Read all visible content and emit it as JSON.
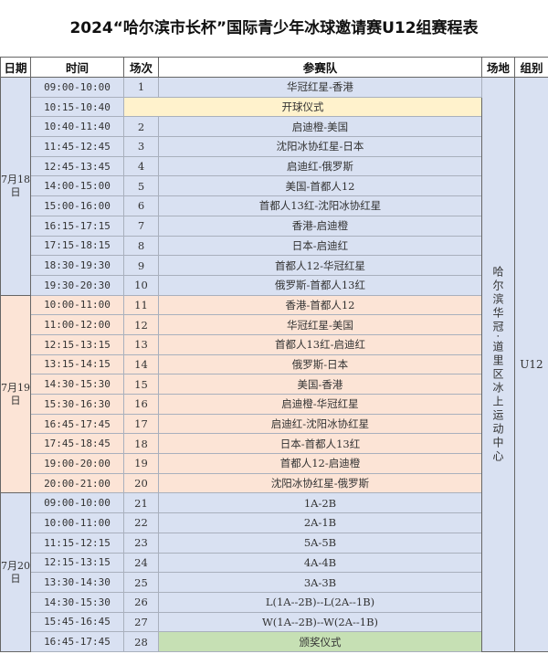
{
  "title": "2024“哈尔滨市长杯”国际青少年冰球邀请赛U12组赛程表",
  "headers": {
    "date": "日期",
    "time": "时间",
    "match": "场次",
    "teams": "参赛队",
    "venue": "场地",
    "group": "组别"
  },
  "venue": "哈尔滨华冠·道里区冰上运动中心",
  "group": "U12",
  "colors": {
    "day1": "#d9e1f2",
    "day2": "#fce4d6",
    "day3": "#d9e1f2",
    "ceremony": "#fff2cc",
    "award": "#c6e0b4"
  },
  "days": [
    {
      "date": "7月18日",
      "rows": [
        {
          "time": "09:00-10:00",
          "no": "1",
          "teams": "华冠红星-香港"
        },
        {
          "time": "10:15-10:40",
          "no": "",
          "teams": "开球仪式",
          "type": "ceremony"
        },
        {
          "time": "10:40-11:40",
          "no": "2",
          "teams": "启迪橙-美国"
        },
        {
          "time": "11:45-12:45",
          "no": "3",
          "teams": "沈阳冰协红星-日本"
        },
        {
          "time": "12:45-13:45",
          "no": "4",
          "teams": "启迪红-俄罗斯"
        },
        {
          "time": "14:00-15:00",
          "no": "5",
          "teams": "美国-首都人12"
        },
        {
          "time": "15:00-16:00",
          "no": "6",
          "teams": "首都人13红-沈阳冰协红星"
        },
        {
          "time": "16:15-17:15",
          "no": "7",
          "teams": "香港-启迪橙"
        },
        {
          "time": "17:15-18:15",
          "no": "8",
          "teams": "日本-启迪红"
        },
        {
          "time": "18:30-19:30",
          "no": "9",
          "teams": "首都人12-华冠红星"
        },
        {
          "time": "19:30-20:30",
          "no": "10",
          "teams": "俄罗斯-首都人13红"
        }
      ]
    },
    {
      "date": "7月19日",
      "rows": [
        {
          "time": "10:00-11:00",
          "no": "11",
          "teams": "香港-首都人12"
        },
        {
          "time": "11:00-12:00",
          "no": "12",
          "teams": "华冠红星-美国"
        },
        {
          "time": "12:15-13:15",
          "no": "13",
          "teams": "首都人13红-启迪红"
        },
        {
          "time": "13:15-14:15",
          "no": "14",
          "teams": "俄罗斯-日本"
        },
        {
          "time": "14:30-15:30",
          "no": "15",
          "teams": "美国-香港"
        },
        {
          "time": "15:30-16:30",
          "no": "16",
          "teams": "启迪橙-华冠红星"
        },
        {
          "time": "16:45-17:45",
          "no": "17",
          "teams": "启迪红-沈阳冰协红星"
        },
        {
          "time": "17:45-18:45",
          "no": "18",
          "teams": "日本-首都人13红"
        },
        {
          "time": "19:00-20:00",
          "no": "19",
          "teams": "首都人12-启迪橙"
        },
        {
          "time": "20:00-21:00",
          "no": "20",
          "teams": "沈阳冰协红星-俄罗斯"
        }
      ]
    },
    {
      "date": "7月20日",
      "rows": [
        {
          "time": "09:00-10:00",
          "no": "21",
          "teams": "1A-2B"
        },
        {
          "time": "10:00-11:00",
          "no": "22",
          "teams": "2A-1B"
        },
        {
          "time": "11:15-12:15",
          "no": "23",
          "teams": "5A-5B"
        },
        {
          "time": "12:15-13:15",
          "no": "24",
          "teams": "4A-4B"
        },
        {
          "time": "13:30-14:30",
          "no": "25",
          "teams": "3A-3B"
        },
        {
          "time": "14:30-15:30",
          "no": "26",
          "teams": "L(1A--2B)--L(2A--1B)"
        },
        {
          "time": "15:45-16:45",
          "no": "27",
          "teams": "W(1A--2B)--W(2A--1B)"
        },
        {
          "time": "16:45-17:45",
          "no": "28",
          "teams": "颁奖仪式",
          "type": "award"
        }
      ]
    }
  ]
}
